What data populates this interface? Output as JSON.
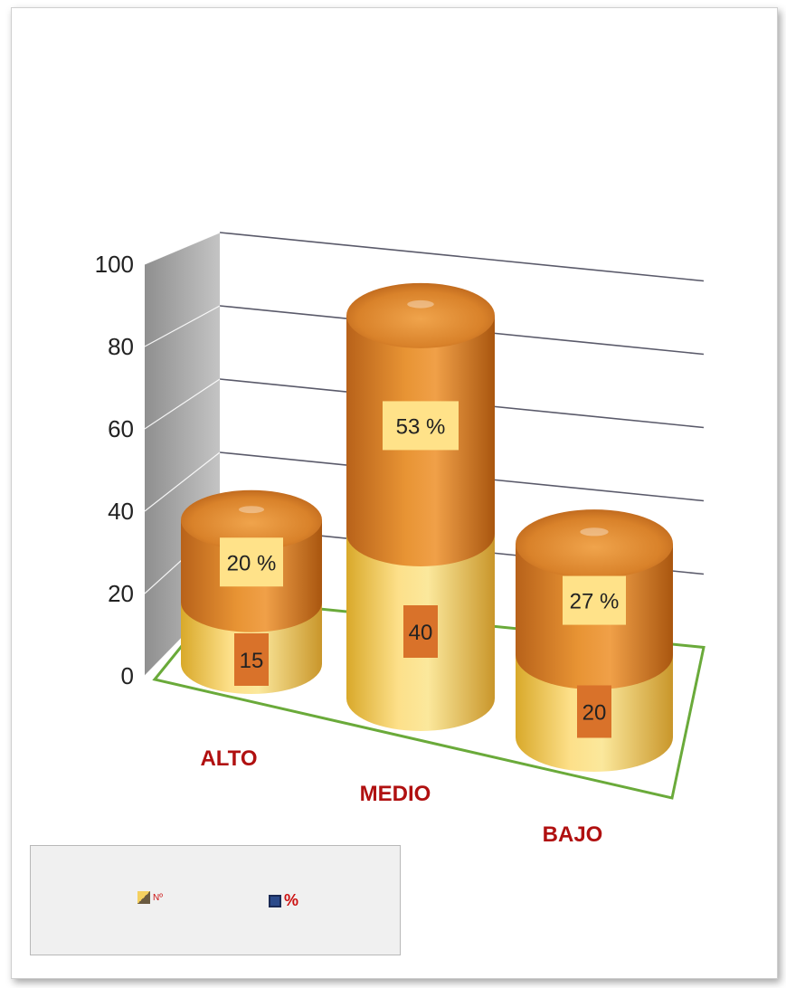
{
  "chart_data": {
    "type": "bar",
    "subtype": "3d-stacked-cylinder",
    "categories": [
      "ALTO",
      "MEDIO",
      "BAJO"
    ],
    "series": [
      {
        "name": "Nº",
        "values": [
          15,
          40,
          20
        ],
        "labels": [
          "15",
          "40",
          "20"
        ],
        "color": "#f4d060"
      },
      {
        "name": "%",
        "values": [
          20,
          53,
          27
        ],
        "labels": [
          "20 %",
          "53 %",
          "27 %"
        ],
        "color": "#e8912e"
      }
    ],
    "y_ticks": [
      "0",
      "20",
      "40",
      "60",
      "80",
      "100"
    ],
    "ylim": [
      0,
      100
    ],
    "grid": true,
    "legend_position": "bottom-left",
    "colors": {
      "category_text": "#b01010",
      "legend_text": "#cc1111",
      "label_bg_on_orange": "#ffe289",
      "label_bg_on_yellow": "#d9722a",
      "floor_line": "#6aaa3a",
      "wall": "#a9a9a9"
    }
  }
}
